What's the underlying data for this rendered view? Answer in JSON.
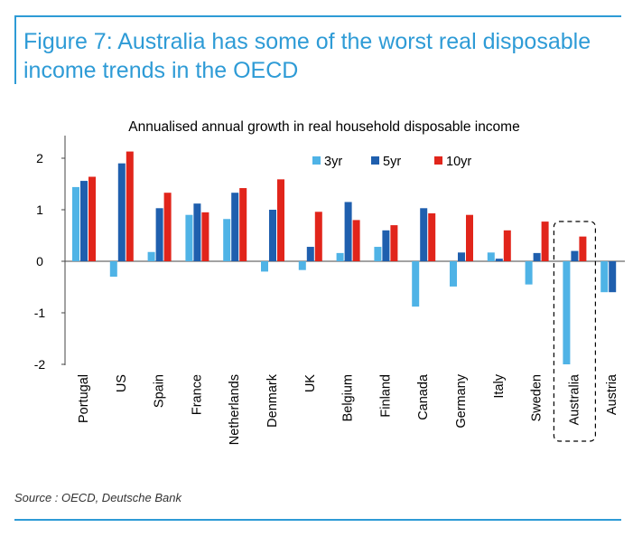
{
  "figure": {
    "heading_line1": "Figure 7: Australia has some of the worst real disposable",
    "heading_line2": "income trends in the OECD",
    "source": "Source : OECD, Deutsche Bank"
  },
  "colors": {
    "accent": "#2e9bd6"
  },
  "chart_data": {
    "type": "bar",
    "title": "Annualised annual growth in real household disposable income",
    "xlabel": "",
    "ylabel": "",
    "ylim": [
      -2,
      2.3
    ],
    "yticks": [
      2,
      1,
      0,
      -1,
      -2
    ],
    "ytick_labels": [
      "2",
      "1",
      "0",
      "-1",
      "-2"
    ],
    "categories": [
      "Portugal",
      "US",
      "Spain",
      "France",
      "Netherlands",
      "Denmark",
      "UK",
      "Belgium",
      "Finland",
      "Canada",
      "Germany",
      "Italy",
      "Sweden",
      "Australia",
      "Austria"
    ],
    "series": [
      {
        "name": "3yr",
        "color": "#4fb3e6",
        "values": [
          1.44,
          -0.3,
          0.18,
          0.9,
          0.82,
          -0.2,
          -0.17,
          0.16,
          0.28,
          -0.88,
          -0.49,
          0.17,
          -0.45,
          -2.0,
          -0.6
        ]
      },
      {
        "name": "5yr",
        "color": "#1f5fae",
        "values": [
          1.56,
          1.9,
          1.03,
          1.12,
          1.33,
          1.0,
          0.28,
          1.15,
          0.6,
          1.03,
          0.17,
          0.05,
          0.16,
          0.2,
          -0.6
        ]
      },
      {
        "name": "10yr",
        "color": "#e1251b",
        "values": [
          1.64,
          2.13,
          1.33,
          0.95,
          1.42,
          1.59,
          0.96,
          0.8,
          0.7,
          0.93,
          0.9,
          0.6,
          0.77,
          0.48,
          null
        ]
      }
    ],
    "legend_position": "top-right",
    "grid": false,
    "highlight_category": "Australia",
    "highlight_style": "dashed-box"
  }
}
